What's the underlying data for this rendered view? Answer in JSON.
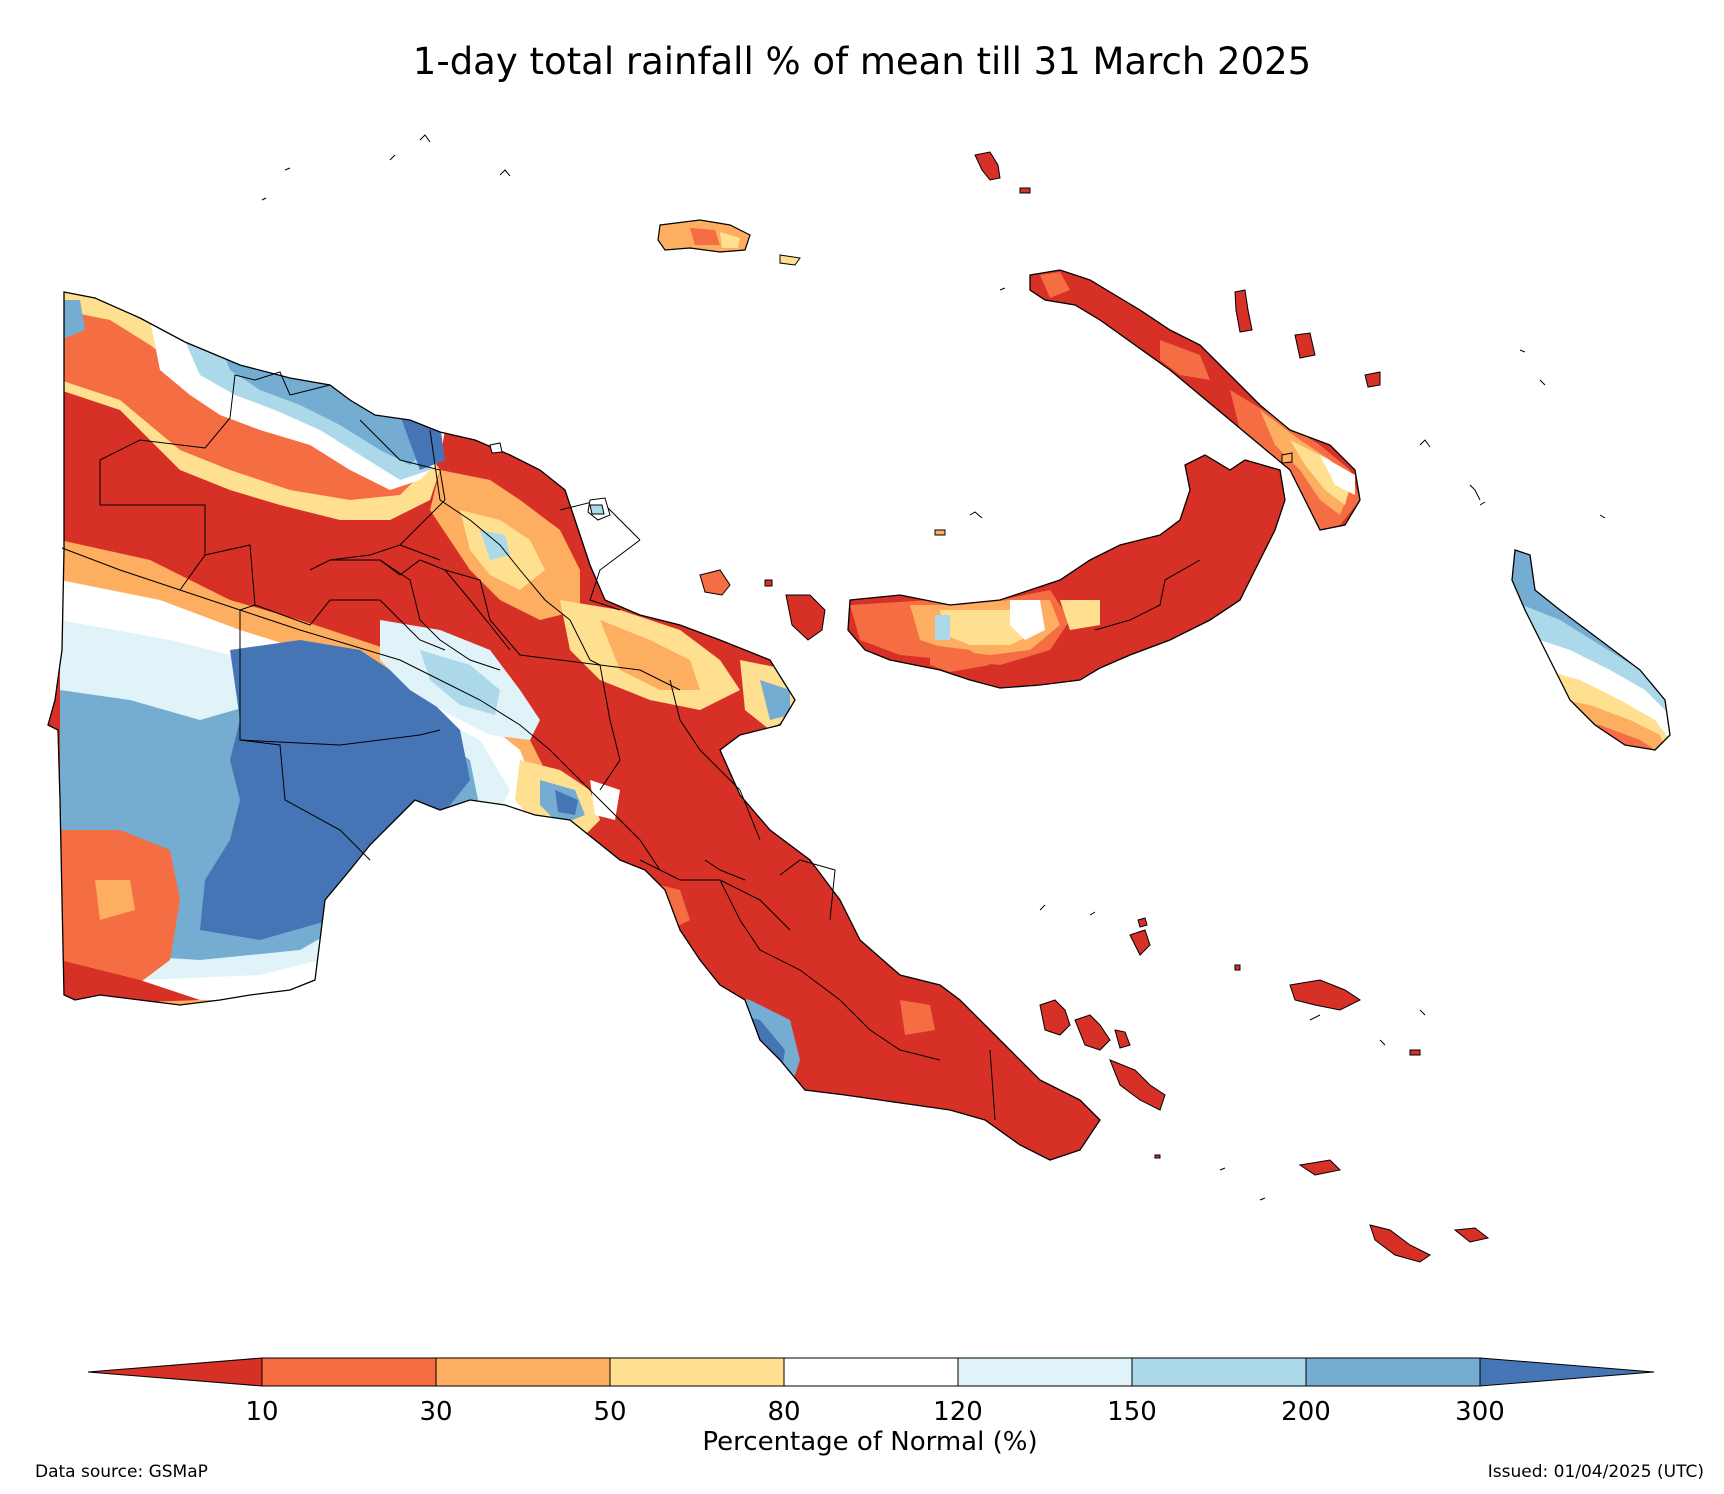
{
  "title": "1-day total rainfall % of mean till 31 March 2025",
  "colorbar": {
    "label": "Percentage of Normal (%)",
    "ticks": [
      "10",
      "30",
      "50",
      "80",
      "120",
      "150",
      "200",
      "300"
    ],
    "colors": [
      "#d73027",
      "#f46d43",
      "#fdae61",
      "#fee090",
      "#ffffff",
      "#e0f3f8",
      "#abd9e9",
      "#74add1",
      "#4575b4"
    ]
  },
  "footer": {
    "source": "Data source: GSMaP",
    "issued": "Issued: 01/04/2025 (UTC)"
  },
  "palette": {
    "c10": "#d73027",
    "c30": "#f46d43",
    "c50": "#fdae61",
    "c80": "#fee090",
    "c120": "#ffffff",
    "c150": "#e0f3f8",
    "c200": "#abd9e9",
    "c300": "#74add1",
    "cmax": "#4575b4"
  }
}
